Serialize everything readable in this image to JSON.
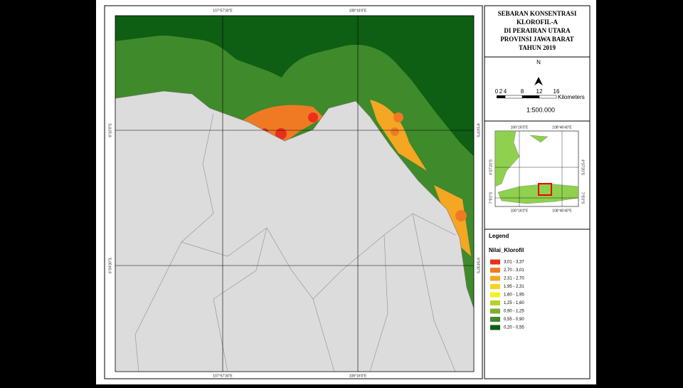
{
  "title": {
    "lines": [
      "SEBARAN KONSENTRASI",
      "KLOROFIL-A",
      "DI PERAIRAN UTARA",
      "PROVINSI JAWA BARAT",
      "TAHUN 2019"
    ]
  },
  "map": {
    "top_labels": [
      "107°57'30\"E",
      "108°16'0\"E"
    ],
    "bottom_labels": [
      "107°57'30\"E",
      "108°16'0\"E"
    ],
    "left_labels": [
      "6°16'0\"S",
      "6°34'30\"S"
    ],
    "right_labels": [
      "6°16'0\"S",
      "6°34'30\"S"
    ]
  },
  "north": "N",
  "scale": {
    "ticks": [
      "0",
      "2",
      "4",
      "8",
      "12",
      "16"
    ],
    "unit": "Kilometers",
    "ratio": "1:500.000"
  },
  "inset": {
    "top_labels": [
      "106°16'0\"E",
      "108°46'40\"E"
    ],
    "bottom_labels": [
      "106°16'0\"E",
      "108°46'40\"E"
    ],
    "left_labels": [
      "4°37'20\"S",
      "7°5'0\"S"
    ],
    "right_labels": [
      "4°37'20\"S",
      "7°5'0\"S"
    ]
  },
  "legend": {
    "title": "Legend",
    "subtitle": "Nilai_Klorofil",
    "items": [
      {
        "label": "3,01 - 3,37",
        "color": "#e8301c"
      },
      {
        "label": "2,70 - 3,01",
        "color": "#f07a24"
      },
      {
        "label": "2,31 - 2,70",
        "color": "#f5a623"
      },
      {
        "label": "1,95 - 2,31",
        "color": "#f7d21f"
      },
      {
        "label": "1,60 - 1,95",
        "color": "#f2f21e"
      },
      {
        "label": "1,25 - 1,60",
        "color": "#b5d12a"
      },
      {
        "label": "0,90 - 1,25",
        "color": "#7fae2e"
      },
      {
        "label": "0,55 - 0,90",
        "color": "#3f8a2a"
      },
      {
        "label": "0,20 - 0,55",
        "color": "#0e5e14"
      }
    ]
  }
}
